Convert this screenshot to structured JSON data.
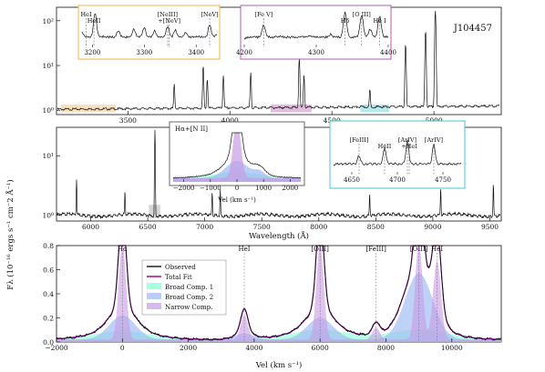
{
  "chart_data": [
    {
      "type": "line",
      "object_label": "J104457",
      "x_ticks": [
        3500,
        4000,
        4500,
        5000
      ],
      "y_tick_labels": [
        "10⁰",
        "10¹",
        "10²"
      ],
      "xlim": [
        3150,
        5330
      ],
      "y_scale": "log",
      "ylim": [
        0.8,
        200
      ],
      "shaded_regions": [
        {
          "x": [
            3170,
            3440
          ],
          "color": "#f2c98a"
        },
        {
          "x": [
            4200,
            4400
          ],
          "color": "#c986c9"
        },
        {
          "x": [
            4640,
            4780
          ],
          "color": "#7fd6d6"
        }
      ],
      "lines": [
        {
          "x": 3727,
          "y": 2.8
        },
        {
          "x": 3869,
          "y": 9
        },
        {
          "x": 3889,
          "y": 4
        },
        {
          "x": 3968,
          "y": 5
        },
        {
          "x": 4102,
          "y": 6
        },
        {
          "x": 4340,
          "y": 14
        },
        {
          "x": 4363,
          "y": 5
        },
        {
          "x": 4686,
          "y": 1.8
        },
        {
          "x": 4861,
          "y": 30
        },
        {
          "x": 4959,
          "y": 60
        },
        {
          "x": 5007,
          "y": 170
        }
      ],
      "insets": [
        {
          "x_ticks": [
            3200,
            3300,
            3400
          ],
          "line_labels": [
            "HeI",
            "HeII",
            "[NeIII]",
            "+[NeV]",
            "[NeV]"
          ],
          "border_color": "#f2b64a",
          "x": [
            3180,
            3205,
            3220,
            3250,
            3280,
            3300,
            3320,
            3345,
            3360,
            3380,
            3405,
            3426,
            3440
          ],
          "y": [
            0.4,
            0.95,
            0.3,
            0.45,
            0.5,
            0.55,
            0.45,
            0.58,
            0.48,
            0.42,
            0.3,
            0.62,
            0.35
          ]
        },
        {
          "x_ticks": [
            4200,
            4300,
            4400
          ],
          "line_labels": [
            "[Fe V]",
            "Hδ",
            "[O III]",
            "He I"
          ],
          "border_color": "#b45ab4",
          "x": [
            4200,
            4227,
            4250,
            4290,
            4320,
            4340,
            4363,
            4375,
            4388,
            4400
          ],
          "y": [
            0.25,
            0.6,
            0.3,
            0.32,
            0.35,
            0.95,
            0.9,
            0.5,
            0.85,
            0.3
          ]
        },
        {
          "title": "Hα+[N II]",
          "x_label": "Vel (km s⁻¹)",
          "x_ticks": [
            -2000,
            -1000,
            0,
            1000,
            2000
          ],
          "x": [
            -2300,
            -1500,
            -800,
            -400,
            0,
            400,
            800,
            1200,
            2300
          ],
          "y": [
            0.08,
            0.1,
            0.18,
            0.45,
            0.98,
            0.4,
            0.3,
            0.12,
            0.08
          ]
        },
        {
          "x_ticks": [
            4650,
            4700,
            4750
          ],
          "line_labels": [
            "[FeIII]",
            "HeII",
            "[ArIV]",
            "+HeI",
            "[ArIV]"
          ],
          "border_color": "#4ac7c7",
          "x": [
            4630,
            4658,
            4686,
            4711,
            4740,
            4770
          ],
          "y": [
            0.25,
            0.5,
            0.7,
            0.9,
            0.8,
            0.3
          ]
        }
      ]
    },
    {
      "type": "line",
      "x_ticks": [
        6000,
        6500,
        7000,
        7500,
        8000,
        8500,
        9000,
        9500
      ],
      "y_tick_labels": [
        "10⁰",
        "10¹"
      ],
      "xlim": [
        5700,
        9600
      ],
      "y_scale": "log",
      "ylim": [
        0.8,
        30
      ],
      "shaded_regions": [
        {
          "x": [
            6510,
            6610
          ],
          "color": "#bbbbbb"
        }
      ],
      "lines": [
        {
          "x": 5876,
          "y": 3
        },
        {
          "x": 6300,
          "y": 1.5
        },
        {
          "x": 6563,
          "y": 26
        },
        {
          "x": 7065,
          "y": 1.5
        },
        {
          "x": 7136,
          "y": 1.7
        },
        {
          "x": 8446,
          "y": 1.4
        },
        {
          "x": 9069,
          "y": 1.9
        },
        {
          "x": 9531,
          "y": 2.5
        }
      ]
    },
    {
      "type": "line",
      "x_label": "Vel (km s⁻¹)",
      "x_ticks": [
        -2000,
        0,
        2000,
        4000,
        6000,
        8000,
        10000
      ],
      "y_ticks": [
        0.0,
        0.2,
        0.4,
        0.6,
        0.8
      ],
      "xlim": [
        -2000,
        11500
      ],
      "ylim": [
        0,
        0.8
      ],
      "line_labels": [
        {
          "text": "Hα",
          "x": 0
        },
        {
          "text": "HeI",
          "x": 3700
        },
        {
          "text": "[OIII]",
          "x": 6000
        },
        {
          "text": "[FeIII]",
          "x": 7700
        },
        {
          "text": "[OIII]",
          "x": 9000
        },
        {
          "text": "HeI",
          "x": 9550
        }
      ],
      "legend": {
        "placement": "upper-center",
        "entries": [
          {
            "label": "Observed",
            "color": "#111111"
          },
          {
            "label": "Total Fit",
            "color": "#8b008b"
          },
          {
            "label": "Broad Comp. 1",
            "color": "#7fffd4"
          },
          {
            "label": "Broad Comp. 2",
            "color": "#9db8f2"
          },
          {
            "label": "Narrow Comp.",
            "color": "#c79be3"
          }
        ]
      },
      "components": [
        {
          "name": "Broad Comp. 1",
          "peaks": [
            {
              "x": 0,
              "a": 0.07,
              "s": 900
            },
            {
              "x": 6000,
              "a": 0.08,
              "s": 900
            },
            {
              "x": 9000,
              "a": 0.08,
              "s": 900
            }
          ]
        },
        {
          "name": "Broad Comp. 2",
          "peaks": [
            {
              "x": 0,
              "a": 0.2,
              "s": 400
            },
            {
              "x": 3700,
              "a": 0.05,
              "s": 300
            },
            {
              "x": 6000,
              "a": 0.18,
              "s": 400
            },
            {
              "x": 9000,
              "a": 0.55,
              "s": 420
            }
          ]
        },
        {
          "name": "Narrow Comp.",
          "peaks": [
            {
              "x": 0,
              "a": 0.8,
              "s": 110
            },
            {
              "x": 3700,
              "a": 0.2,
              "s": 110
            },
            {
              "x": 6000,
              "a": 0.8,
              "s": 110
            },
            {
              "x": 7700,
              "a": 0.1,
              "s": 110
            },
            {
              "x": 9000,
              "a": 0.8,
              "s": 110
            },
            {
              "x": 9550,
              "a": 0.65,
              "s": 120
            }
          ]
        }
      ]
    }
  ],
  "y_axis_label": "Fλ (10⁻¹⁶ ergs s⁻¹ cm⁻2 Å⁻¹)",
  "mid_x_label": "Wavelength (Å)"
}
